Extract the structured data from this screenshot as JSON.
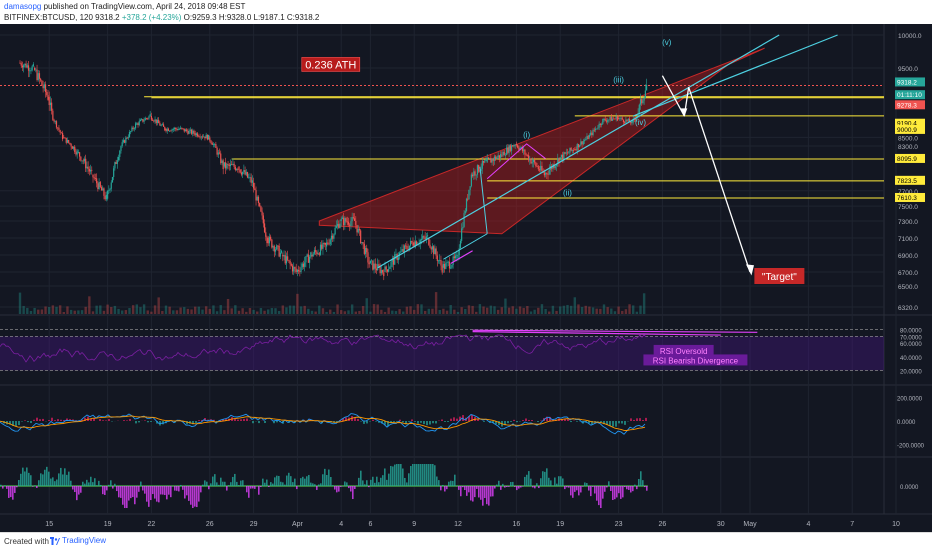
{
  "header": {
    "author": "damasopg",
    "published": " published on TradingView.com, April 24, 2018 09:48 EST",
    "symbol": "BITFINEX:BTCUSD, 120",
    "last": " 9318.2 ",
    "change": "+378.2 (+4.23%)",
    "ohlc": " O:9259.3 H:9328.0 L:9187.1 C:9318.2"
  },
  "footer": {
    "created": "Created with",
    "brand": "TradingView"
  },
  "colors": {
    "background": "#131722",
    "up": "#26a69a",
    "down": "#ef5350",
    "yellow": "#ffeb3b",
    "cyan": "#4dd0e1",
    "magenta": "#e040fb",
    "wedge": "#b71c1c"
  },
  "chart_data": [
    {
      "type": "candlestick",
      "pane": "price",
      "x_ticks": [
        "15",
        "19",
        "22",
        "26",
        "29",
        "Apr",
        "4",
        "6",
        "9",
        "12",
        "16",
        "19",
        "23",
        "26",
        "30",
        "May",
        "4",
        "7",
        "10"
      ],
      "ylim": [
        6320,
        10000
      ],
      "y_ticks": [
        6320,
        6500,
        6700,
        6900,
        7100,
        7300,
        7500,
        7700,
        8300,
        8500,
        9500,
        10000
      ],
      "price_labels": [
        {
          "text": "9318.2",
          "role": "last"
        },
        {
          "text": "01:11:10",
          "role": "countdown"
        },
        {
          "text": "9278.3",
          "role": "red-level"
        },
        {
          "text": "9190.4",
          "role": "yellow-level"
        },
        {
          "text": "9000.9",
          "role": "yellow-level"
        },
        {
          "text": "8095.9",
          "role": "yellow-level"
        },
        {
          "text": "7823.5",
          "role": "yellow-level"
        },
        {
          "text": "7610.3",
          "role": "yellow-level"
        }
      ],
      "horizontal_levels": [
        9318.2,
        9190.4,
        9000.9,
        8095.9,
        7823.5,
        7610.3
      ],
      "ath_level": 9318.2,
      "close_path": [
        {
          "x": "Mar 13",
          "y": 9500
        },
        {
          "x": "Mar 14",
          "y": 9200
        },
        {
          "x": "Mar 15",
          "y": 8500
        },
        {
          "x": "Mar 16",
          "y": 8200
        },
        {
          "x": "Mar 17",
          "y": 7900
        },
        {
          "x": "Mar 18",
          "y": 7600
        },
        {
          "x": "Mar 19",
          "y": 8300
        },
        {
          "x": "Mar 20",
          "y": 8800
        },
        {
          "x": "Mar 21",
          "y": 9000
        },
        {
          "x": "Mar 22",
          "y": 8700
        },
        {
          "x": "Mar 23",
          "y": 8700
        },
        {
          "x": "Mar 24",
          "y": 8600
        },
        {
          "x": "Mar 25",
          "y": 8500
        },
        {
          "x": "Mar 26",
          "y": 8000
        },
        {
          "x": "Mar 27",
          "y": 8000
        },
        {
          "x": "Mar 28",
          "y": 7800
        },
        {
          "x": "Mar 29",
          "y": 7100
        },
        {
          "x": "Mar 30",
          "y": 6900
        },
        {
          "x": "Mar 31",
          "y": 6700
        },
        {
          "x": "Apr 1",
          "y": 6900
        },
        {
          "x": "Apr 2",
          "y": 7000
        },
        {
          "x": "Apr 3",
          "y": 7300
        },
        {
          "x": "Apr 4",
          "y": 7300
        },
        {
          "x": "Apr 5",
          "y": 6800
        },
        {
          "x": "Apr 6",
          "y": 6700
        },
        {
          "x": "Apr 7",
          "y": 6900
        },
        {
          "x": "Apr 8",
          "y": 7050
        },
        {
          "x": "Apr 9",
          "y": 7100
        },
        {
          "x": "Apr 10",
          "y": 6750
        },
        {
          "x": "Apr 11",
          "y": 6850
        },
        {
          "x": "Apr 12",
          "y": 7900
        },
        {
          "x": "Apr 13",
          "y": 8050
        },
        {
          "x": "Apr 14",
          "y": 8150
        },
        {
          "x": "Apr 15",
          "y": 8350
        },
        {
          "x": "Apr 16",
          "y": 8100
        },
        {
          "x": "Apr 17",
          "y": 7900
        },
        {
          "x": "Apr 18",
          "y": 8100
        },
        {
          "x": "Apr 19",
          "y": 8250
        },
        {
          "x": "Apr 20",
          "y": 8500
        },
        {
          "x": "Apr 21",
          "y": 8900
        },
        {
          "x": "Apr 22",
          "y": 8950
        },
        {
          "x": "Apr 23",
          "y": 8850
        },
        {
          "x": "Apr 24",
          "y": 9318.2
        }
      ],
      "annotations": [
        {
          "text": "0.236 ATH",
          "kind": "red-box"
        },
        {
          "text": "\"Target\"",
          "kind": "red-box"
        },
        {
          "text": "(i)",
          "kind": "wave"
        },
        {
          "text": "(ii)",
          "kind": "wave"
        },
        {
          "text": "(iii)",
          "kind": "wave"
        },
        {
          "text": "(iv)",
          "kind": "wave"
        },
        {
          "text": "(v)",
          "kind": "wave"
        }
      ]
    },
    {
      "type": "line",
      "pane": "rsi",
      "ylim": [
        0,
        100
      ],
      "y_ticks": [
        20,
        40,
        60,
        80
      ],
      "tick_labels": [
        "80.0000",
        "70.0000",
        "60.0000",
        "40.0000",
        "20.0000"
      ],
      "bands": [
        20,
        70,
        80
      ],
      "annotations": [
        "RSI Oversold",
        "RSI Bearish Divergence"
      ]
    },
    {
      "type": "line",
      "pane": "macd",
      "y_ticks": [
        -200,
        0,
        200
      ],
      "tick_labels": [
        "200.0000",
        "0.0000",
        "-200.0000"
      ]
    },
    {
      "type": "bar",
      "pane": "histogram",
      "y_ticks": [
        0
      ],
      "tick_labels": [
        "0.0000"
      ]
    }
  ]
}
